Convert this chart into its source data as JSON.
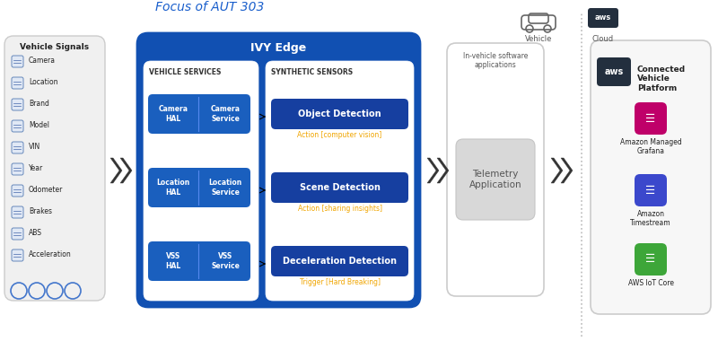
{
  "focus_label": "Focus of AUT 303",
  "ivy_edge_label": "IVY Edge",
  "vehicle_services_label": "VEHICLE SERVICES",
  "synthetic_sensors_label": "SYNTHETIC SENSORS",
  "vehicle_signals": [
    "Camera",
    "Location",
    "Brand",
    "Model",
    "VIN",
    "Year",
    "Odometer",
    "Brakes",
    "ABS",
    "Acceleration"
  ],
  "hal_services": [
    {
      "hal": "Camera\nHAL",
      "service": "Camera\nService"
    },
    {
      "hal": "Location\nHAL",
      "service": "Location\nService"
    },
    {
      "hal": "VSS\nHAL",
      "service": "VSS\nService"
    }
  ],
  "synthetic_detections": [
    {
      "name": "Object Detection",
      "action": "Action [computer vision]"
    },
    {
      "name": "Scene Detection",
      "action": "Action [sharing insights]"
    },
    {
      "name": "Deceleration Detection",
      "action": "Trigger [Hard Breaking]"
    }
  ],
  "invehicle_label": "In-vehicle software\napplications",
  "telemetry_label": "Telemetry\nApplication",
  "vehicle_label": "Vehicle",
  "cloud_label": "Cloud",
  "cvp_title": "Connected\nVehicle\nPlatform",
  "aws_services": [
    {
      "name": "Amazon Managed\nGrafana",
      "color": "#bf0069"
    },
    {
      "name": "Amazon\nTimestream",
      "color": "#3b48cc"
    },
    {
      "name": "AWS IoT Core",
      "color": "#3da639"
    }
  ],
  "bg_color": "#ffffff",
  "blue_outer": "#1150b2",
  "blue_inner": "#1a5fbe",
  "blue_box": "#1a5fbe",
  "blue_detect": "#163fa0",
  "white": "#ffffff",
  "orange_text": "#f0a500",
  "focus_color": "#1a5fcc",
  "gray_panel": "#f0f0f0",
  "gray_border": "#cccccc",
  "gray_tel": "#d8d8d8",
  "black_text": "#222222",
  "aws_dark": "#232f3e"
}
